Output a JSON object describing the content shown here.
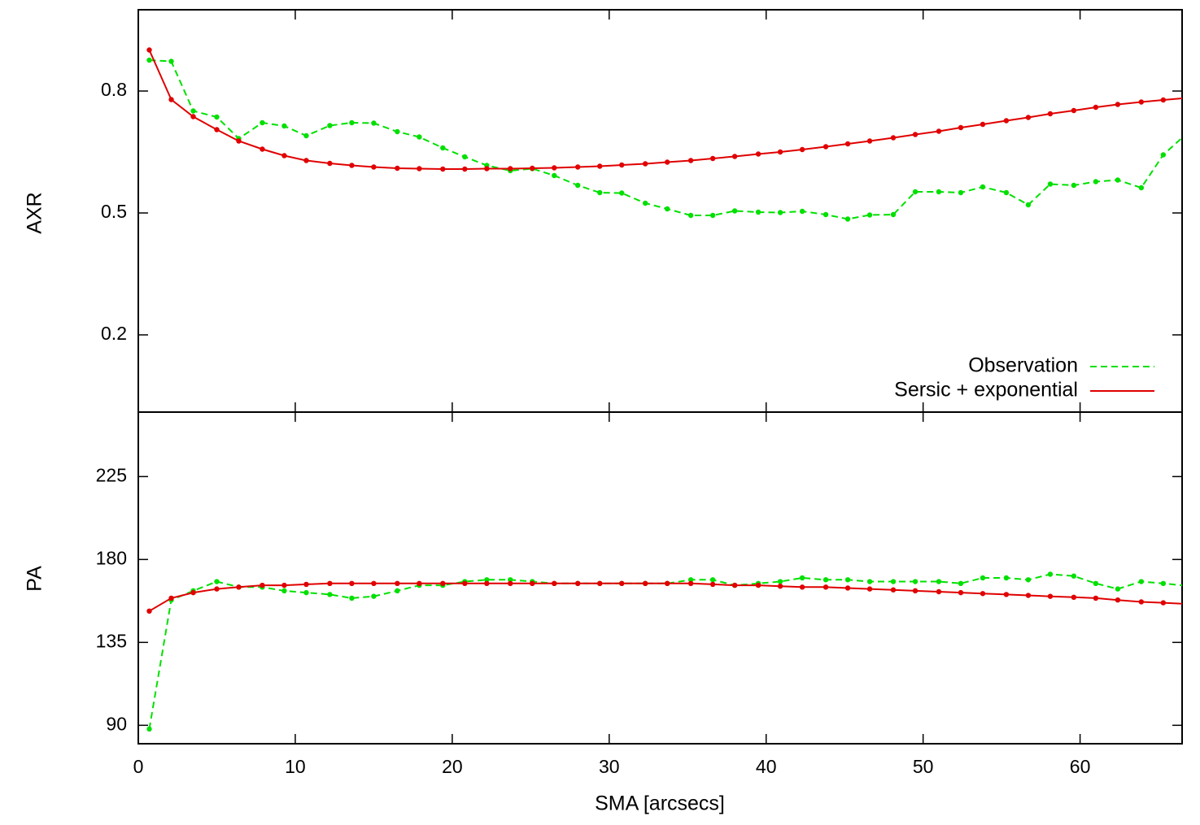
{
  "colors": {
    "observation": "#00e000",
    "model": "#e00000",
    "axes": "#000000",
    "background": "#ffffff"
  },
  "chart_data": {
    "type": "line",
    "title": "",
    "shared_x": {
      "label": "SMA [arcsecs]",
      "range": [
        0,
        66.5
      ],
      "ticks": [
        0,
        10,
        20,
        30,
        40,
        50,
        60
      ]
    },
    "legend": {
      "placement": "bottom-right of upper panel",
      "entries": [
        {
          "label": "Observation",
          "style": "dashed",
          "color": "#00e000"
        },
        {
          "label": "Sersic + exponential",
          "style": "solid",
          "color": "#e00000"
        }
      ]
    },
    "grid": false,
    "panels": [
      {
        "name": "axr",
        "ylabel": "AXR",
        "ylim": [
          0.01,
          1.0
        ],
        "yticks": [
          0.2,
          0.5,
          0.8
        ],
        "ytick_labels": [
          "0.2",
          "0.5",
          "0.8"
        ],
        "series": [
          {
            "name": "Observation",
            "style": "dashed",
            "color": "#00e000",
            "x": [
              0.7,
              2.1,
              3.5,
              5.0,
              6.4,
              7.9,
              9.3,
              10.7,
              12.2,
              13.6,
              15.0,
              16.5,
              17.9,
              19.4,
              20.8,
              22.2,
              23.7,
              25.1,
              26.5,
              28.0,
              29.4,
              30.8,
              32.3,
              33.7,
              35.2,
              36.6,
              38.0,
              39.5,
              40.9,
              42.3,
              43.8,
              45.2,
              46.6,
              48.1,
              49.5,
              51.0,
              52.4,
              53.8,
              55.3,
              56.7,
              58.1,
              59.6,
              61.0,
              62.4,
              63.9,
              65.3,
              66.5
            ],
            "y": [
              0.876,
              0.873,
              0.751,
              0.736,
              0.683,
              0.722,
              0.714,
              0.69,
              0.715,
              0.722,
              0.721,
              0.7,
              0.687,
              0.66,
              0.638,
              0.617,
              0.604,
              0.609,
              0.592,
              0.568,
              0.55,
              0.549,
              0.524,
              0.51,
              0.494,
              0.494,
              0.505,
              0.502,
              0.501,
              0.504,
              0.496,
              0.485,
              0.495,
              0.496,
              0.552,
              0.552,
              0.55,
              0.564,
              0.55,
              0.52,
              0.571,
              0.568,
              0.577,
              0.581,
              0.562,
              0.643,
              0.685
            ]
          },
          {
            "name": "Sersic + exponential",
            "style": "solid",
            "color": "#e00000",
            "x": [
              0.7,
              2.1,
              3.5,
              5.0,
              6.4,
              7.9,
              9.3,
              10.7,
              12.2,
              13.6,
              15.0,
              16.5,
              17.9,
              19.4,
              20.8,
              22.2,
              23.7,
              25.1,
              26.5,
              28.0,
              29.4,
              30.8,
              32.3,
              33.7,
              35.2,
              36.6,
              38.0,
              39.5,
              40.9,
              42.3,
              43.8,
              45.2,
              46.6,
              48.1,
              49.5,
              51.0,
              52.4,
              53.8,
              55.3,
              56.7,
              58.1,
              59.6,
              61.0,
              62.4,
              63.9,
              65.3,
              66.5
            ],
            "y": [
              0.901,
              0.779,
              0.737,
              0.705,
              0.677,
              0.657,
              0.641,
              0.629,
              0.622,
              0.617,
              0.613,
              0.61,
              0.609,
              0.608,
              0.608,
              0.609,
              0.609,
              0.61,
              0.611,
              0.613,
              0.615,
              0.618,
              0.621,
              0.625,
              0.629,
              0.634,
              0.639,
              0.645,
              0.65,
              0.656,
              0.663,
              0.67,
              0.677,
              0.685,
              0.693,
              0.701,
              0.71,
              0.718,
              0.727,
              0.735,
              0.744,
              0.752,
              0.76,
              0.767,
              0.773,
              0.778,
              0.782
            ]
          }
        ]
      },
      {
        "name": "pa",
        "ylabel": "PA",
        "ylim": [
          80,
          260
        ],
        "yticks": [
          90,
          135,
          180,
          225
        ],
        "ytick_labels": [
          "90",
          "135",
          "180",
          "225"
        ],
        "series": [
          {
            "name": "Observation",
            "style": "dashed",
            "color": "#00e000",
            "x": [
              0.7,
              2.1,
              3.5,
              5.0,
              6.4,
              7.9,
              9.3,
              10.7,
              12.2,
              13.6,
              15.0,
              16.5,
              17.9,
              19.4,
              20.8,
              22.2,
              23.7,
              25.1,
              26.5,
              28.0,
              29.4,
              30.8,
              32.3,
              33.7,
              35.2,
              36.6,
              38.0,
              39.5,
              40.9,
              42.3,
              43.8,
              45.2,
              46.6,
              48.1,
              49.5,
              51.0,
              52.4,
              53.8,
              55.3,
              56.7,
              58.1,
              59.6,
              61.0,
              62.4,
              63.9,
              65.3,
              66.5
            ],
            "y": [
              88,
              158,
              163,
              168,
              165,
              165,
              163,
              162,
              161,
              159,
              160,
              163,
              166,
              166,
              168,
              169,
              169,
              168,
              167,
              167,
              167,
              167,
              167,
              167,
              169,
              169,
              166,
              167,
              168,
              170,
              169,
              169,
              168,
              168,
              168,
              168,
              167,
              170,
              170,
              169,
              172,
              171,
              167,
              164,
              168,
              167,
              166
            ]
          },
          {
            "name": "Sersic + exponential",
            "style": "solid",
            "color": "#e00000",
            "x": [
              0.7,
              2.1,
              3.5,
              5.0,
              6.4,
              7.9,
              9.3,
              10.7,
              12.2,
              13.6,
              15.0,
              16.5,
              17.9,
              19.4,
              20.8,
              22.2,
              23.7,
              25.1,
              26.5,
              28.0,
              29.4,
              30.8,
              32.3,
              33.7,
              35.2,
              36.6,
              38.0,
              39.5,
              40.9,
              42.3,
              43.8,
              45.2,
              46.6,
              48.1,
              49.5,
              51.0,
              52.4,
              53.8,
              55.3,
              56.7,
              58.1,
              59.6,
              61.0,
              62.4,
              63.9,
              65.3,
              66.5
            ],
            "y": [
              152,
              159,
              162,
              164,
              165,
              166,
              166,
              166.5,
              167,
              167,
              167,
              167,
              167,
              167,
              167,
              167,
              167,
              167,
              167,
              167,
              167,
              167,
              167,
              167,
              167,
              166.5,
              166,
              166,
              165.5,
              165,
              165,
              164.5,
              164,
              163.5,
              163,
              162.5,
              162,
              161.5,
              161,
              160.5,
              160,
              159.5,
              159,
              158,
              157,
              156.5,
              156
            ]
          }
        ]
      }
    ]
  }
}
